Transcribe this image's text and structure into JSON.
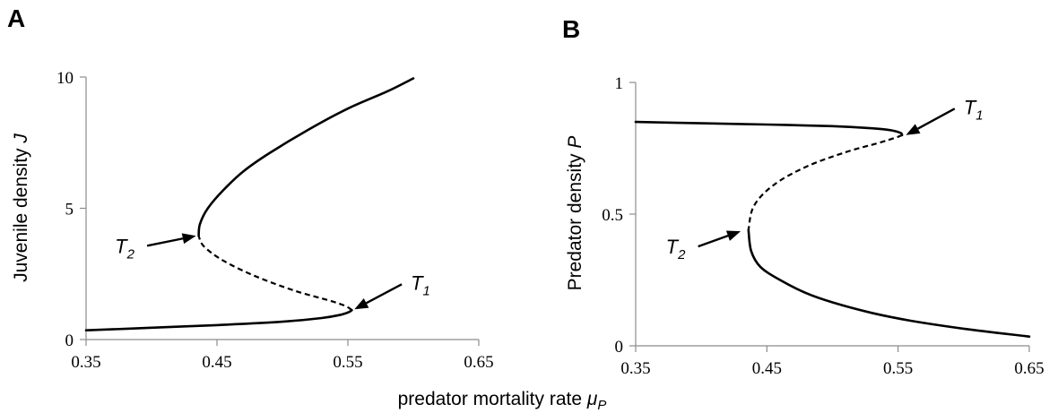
{
  "shared_xlabel": {
    "text": "predator mortality rate ",
    "symbol": "μ",
    "subscript": "P"
  },
  "chart_data": [
    {
      "panel": "A",
      "type": "line",
      "xlabel": "",
      "ylabel": {
        "text": "Juvenile density ",
        "symbol": "J"
      },
      "xlim": [
        0.35,
        0.65
      ],
      "ylim": [
        0,
        10
      ],
      "xticks": [
        "0.35",
        "0.45",
        "0.55",
        "0.65"
      ],
      "yticks": [
        "0",
        "5",
        "10"
      ],
      "series": [
        {
          "style": "solid",
          "points": [
            [
              0.35,
              0.35
            ],
            [
              0.4,
              0.45
            ],
            [
              0.45,
              0.55
            ],
            [
              0.5,
              0.68
            ],
            [
              0.53,
              0.82
            ],
            [
              0.545,
              0.95
            ],
            [
              0.551,
              1.05
            ],
            [
              0.553,
              1.12
            ]
          ]
        },
        {
          "style": "dashed",
          "points": [
            [
              0.553,
              1.12
            ],
            [
              0.548,
              1.28
            ],
            [
              0.535,
              1.5
            ],
            [
              0.51,
              1.85
            ],
            [
              0.48,
              2.4
            ],
            [
              0.455,
              3.0
            ],
            [
              0.44,
              3.55
            ],
            [
              0.436,
              3.95
            ]
          ]
        },
        {
          "style": "solid",
          "points": [
            [
              0.436,
              3.95
            ],
            [
              0.437,
              4.4
            ],
            [
              0.443,
              5.0
            ],
            [
              0.455,
              5.7
            ],
            [
              0.47,
              6.4
            ],
            [
              0.49,
              7.1
            ],
            [
              0.52,
              8.0
            ],
            [
              0.55,
              8.8
            ],
            [
              0.58,
              9.45
            ],
            [
              0.6,
              9.95
            ]
          ]
        }
      ],
      "annotations": [
        {
          "label": "T",
          "sub": "1",
          "x": 0.555,
          "y": 1.15,
          "text_x": 0.598,
          "text_y": 1.9
        },
        {
          "label": "T",
          "sub": "2",
          "x": 0.434,
          "y": 3.95,
          "text_x": 0.372,
          "text_y": 3.3
        }
      ]
    },
    {
      "panel": "B",
      "type": "line",
      "xlabel": "",
      "ylabel": {
        "text": "Predator density ",
        "symbol": "P"
      },
      "xlim": [
        0.35,
        0.65
      ],
      "ylim": [
        0,
        1
      ],
      "xticks": [
        "0.35",
        "0.45",
        "0.55",
        "0.65"
      ],
      "yticks": [
        "0",
        "0.5",
        "1"
      ],
      "series": [
        {
          "style": "solid",
          "points": [
            [
              0.35,
              0.85
            ],
            [
              0.4,
              0.845
            ],
            [
              0.45,
              0.84
            ],
            [
              0.5,
              0.834
            ],
            [
              0.53,
              0.826
            ],
            [
              0.545,
              0.818
            ],
            [
              0.552,
              0.808
            ],
            [
              0.553,
              0.8
            ]
          ]
        },
        {
          "style": "dashed",
          "points": [
            [
              0.553,
              0.8
            ],
            [
              0.548,
              0.79
            ],
            [
              0.535,
              0.77
            ],
            [
              0.51,
              0.735
            ],
            [
              0.48,
              0.68
            ],
            [
              0.455,
              0.61
            ],
            [
              0.44,
              0.53
            ],
            [
              0.436,
              0.44
            ]
          ]
        },
        {
          "style": "solid",
          "points": [
            [
              0.436,
              0.44
            ],
            [
              0.438,
              0.36
            ],
            [
              0.445,
              0.3
            ],
            [
              0.46,
              0.25
            ],
            [
              0.48,
              0.2
            ],
            [
              0.5,
              0.165
            ],
            [
              0.53,
              0.125
            ],
            [
              0.56,
              0.095
            ],
            [
              0.6,
              0.065
            ],
            [
              0.65,
              0.035
            ]
          ]
        }
      ],
      "annotations": [
        {
          "label": "T",
          "sub": "1",
          "x": 0.556,
          "y": 0.8,
          "text_x": 0.6,
          "text_y": 0.88
        },
        {
          "label": "T",
          "sub": "2",
          "x": 0.43,
          "y": 0.435,
          "text_x": 0.373,
          "text_y": 0.35
        }
      ]
    }
  ]
}
